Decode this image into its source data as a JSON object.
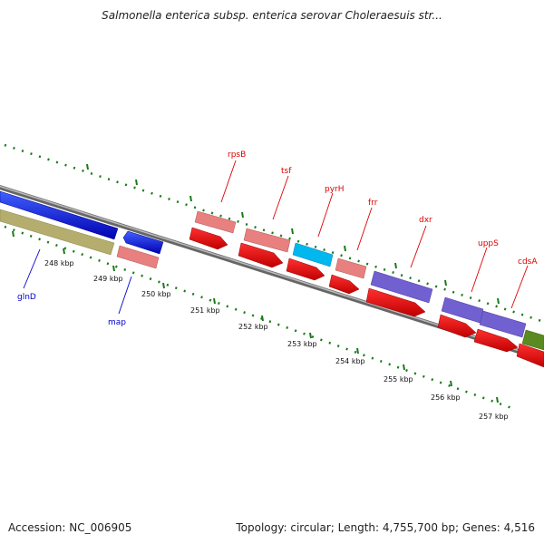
{
  "title": "Salmonella enterica subsp. enterica serovar Choleraesuis str...",
  "footer": {
    "accession": "Accession: NC_006905",
    "summary": "Topology: circular; Length: 4,755,700 bp; Genes: 4,516"
  },
  "ticks": [
    "248 kbp",
    "249 kbp",
    "250 kbp",
    "251 kbp",
    "252 kbp",
    "253 kbp",
    "254 kbp",
    "255 kbp",
    "256 kbp",
    "257 kbp"
  ],
  "genes": [
    {
      "name": "glnD",
      "color": "#0000cc"
    },
    {
      "name": "map",
      "color": "#0000cc"
    },
    {
      "name": "rpsB",
      "color": "#dd0000"
    },
    {
      "name": "tsf",
      "color": "#dd0000"
    },
    {
      "name": "pyrH",
      "color": "#dd0000"
    },
    {
      "name": "frr",
      "color": "#dd0000"
    },
    {
      "name": "dxr",
      "color": "#dd0000"
    },
    {
      "name": "uppS",
      "color": "#dd0000"
    },
    {
      "name": "cdsA",
      "color": "#dd0000"
    }
  ],
  "colors": {
    "backbone": "#888888",
    "tick_dots": "#1a7a1a",
    "forward_cds": "#0000dd",
    "reverse_cds": "#ee0000",
    "khaki": "#b4ad6e",
    "pink": "#e88080",
    "cyan": "#00b8ee",
    "purple": "#7060d0",
    "olive": "#5a8a20"
  }
}
